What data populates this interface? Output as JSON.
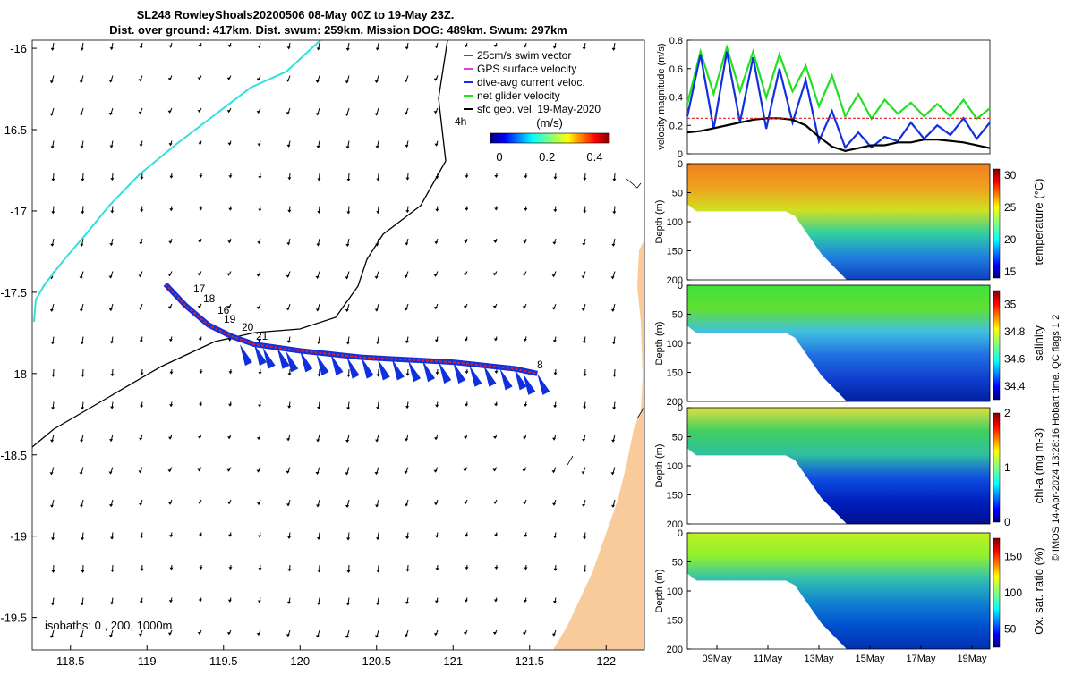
{
  "header": {
    "title": "SL248 RowleyShoals20200506 08-May 00Z to 19-May 23Z.",
    "subtitle": "Dist. over ground: 417km. Dist. swum: 259km. Mission DOG: 489km. Swum: 297km"
  },
  "map": {
    "legend_items": [
      {
        "label": "25cm/s swim vector",
        "color": "#e02020"
      },
      {
        "label": "GPS surface velocity",
        "color": "#e040e0"
      },
      {
        "label": "dive-avg current veloc.",
        "color": "#1030e0"
      },
      {
        "label": "net glider velocity",
        "color": "#20e020"
      },
      {
        "label": "sfc geo. vel. 19-May-2020",
        "color": "#000000"
      }
    ],
    "legend_note": "4h",
    "colorbar_unit": "(m/s)",
    "colorbar_ticks": [
      "0",
      "0.2",
      "0.4"
    ],
    "isobaths_label": "isobaths: 0 , 200, 1000m",
    "day_markers": [
      "17",
      "18",
      "16",
      "19",
      "20",
      "21",
      "8"
    ],
    "colors": {
      "land": "#f9cb9a",
      "track": "#1030e0",
      "swim": "#e02020",
      "coast_isobath": "#000000",
      "cyan_isobath": "#30e0e0"
    }
  },
  "footer_note": "© IMOS 14-Apr-2024 13:28:16 Hobart time. QC flags 1  2",
  "chart_data": [
    {
      "type": "scatter",
      "title": "",
      "xlabel": "",
      "ylabel": "",
      "xlim": [
        118.25,
        122.25
      ],
      "ylim": [
        -19.7,
        -15.95
      ],
      "x_ticks": [
        "118.5",
        "119",
        "119.5",
        "120",
        "120.5",
        "121",
        "121.5",
        "122"
      ],
      "y_ticks": [
        "-16",
        "-16.5",
        "-17",
        "-17.5",
        "-18",
        "-18.5",
        "-19",
        "-19.5"
      ],
      "series": [
        {
          "name": "glider track",
          "x": [
            119.12,
            119.25,
            119.4,
            119.55,
            119.7,
            119.85,
            120.0,
            120.2,
            120.4,
            120.6,
            120.8,
            121.0,
            121.2,
            121.4,
            121.55
          ],
          "y": [
            -17.45,
            -17.58,
            -17.7,
            -17.77,
            -17.82,
            -17.84,
            -17.86,
            -17.88,
            -17.9,
            -17.91,
            -17.92,
            -17.93,
            -17.95,
            -17.97,
            -18.0
          ]
        }
      ]
    },
    {
      "type": "line",
      "title": "",
      "xlabel": "",
      "ylabel": "velocity magnitude (m/s)",
      "ylim": [
        0,
        0.8
      ],
      "y_ticks": [
        "0",
        "0.2",
        "0.4",
        "0.6",
        "0.8"
      ],
      "series": [
        {
          "name": "net glider velocity",
          "color": "#20e020",
          "values": [
            0.4,
            0.72,
            0.48,
            0.75,
            0.5,
            0.72,
            0.45,
            0.7,
            0.5,
            0.62,
            0.38,
            0.55,
            0.3,
            0.42,
            0.28,
            0.38,
            0.32,
            0.36,
            0.3,
            0.35,
            0.3,
            0.38,
            0.28,
            0.32
          ]
        },
        {
          "name": "dive-avg current veloc.",
          "color": "#1030e0",
          "values": [
            0.3,
            0.7,
            0.2,
            0.72,
            0.25,
            0.68,
            0.2,
            0.6,
            0.25,
            0.52,
            0.1,
            0.3,
            0.05,
            0.15,
            0.05,
            0.12,
            0.1,
            0.22,
            0.12,
            0.2,
            0.15,
            0.25,
            0.12,
            0.22
          ]
        },
        {
          "name": "sfc geo. vel.",
          "color": "#000000",
          "values": [
            0.15,
            0.16,
            0.18,
            0.2,
            0.22,
            0.24,
            0.25,
            0.25,
            0.24,
            0.2,
            0.12,
            0.05,
            0.02,
            0.04,
            0.06,
            0.06,
            0.08,
            0.08,
            0.1,
            0.1,
            0.09,
            0.08,
            0.06,
            0.04
          ]
        },
        {
          "name": "25cm/s swim vector",
          "color": "#e02020",
          "values": [
            0.25,
            0.25,
            0.25,
            0.25,
            0.25,
            0.25,
            0.25,
            0.25,
            0.25,
            0.25,
            0.25,
            0.25,
            0.25,
            0.25,
            0.25,
            0.25,
            0.25,
            0.25,
            0.25,
            0.25,
            0.25,
            0.25,
            0.25,
            0.25
          ]
        }
      ]
    },
    {
      "type": "heatmap",
      "ylabel": "Depth (m)",
      "ylim": [
        200,
        0
      ],
      "y_ticks": [
        "0",
        "50",
        "100",
        "150",
        "200"
      ],
      "colorbar_label": "temperature (°C)",
      "colorbar_ticks": [
        "15",
        "20",
        "25",
        "30"
      ],
      "clim": [
        14,
        31
      ]
    },
    {
      "type": "heatmap",
      "ylabel": "Depth (m)",
      "ylim": [
        200,
        0
      ],
      "y_ticks": [
        "0",
        "50",
        "100",
        "150",
        "200"
      ],
      "colorbar_label": "salinity",
      "colorbar_ticks": [
        "34.4",
        "34.6",
        "34.8",
        "35"
      ],
      "clim": [
        34.3,
        35.1
      ]
    },
    {
      "type": "heatmap",
      "ylabel": "Depth (m)",
      "ylim": [
        200,
        0
      ],
      "y_ticks": [
        "0",
        "50",
        "100",
        "150",
        "200"
      ],
      "colorbar_label": "chl-a (mg m-3)",
      "colorbar_ticks": [
        "0",
        "1",
        "2"
      ],
      "clim": [
        0,
        2
      ]
    },
    {
      "type": "heatmap",
      "ylabel": "Depth (m)",
      "ylim": [
        200,
        0
      ],
      "y_ticks": [
        "0",
        "50",
        "100",
        "150",
        "200"
      ],
      "colorbar_label": "Ox. sat. ratio (%)",
      "colorbar_ticks": [
        "50",
        "100",
        "150"
      ],
      "clim": [
        25,
        175
      ],
      "x_ticks": [
        "09May",
        "11May",
        "13May",
        "15May",
        "17May",
        "19May"
      ]
    }
  ]
}
